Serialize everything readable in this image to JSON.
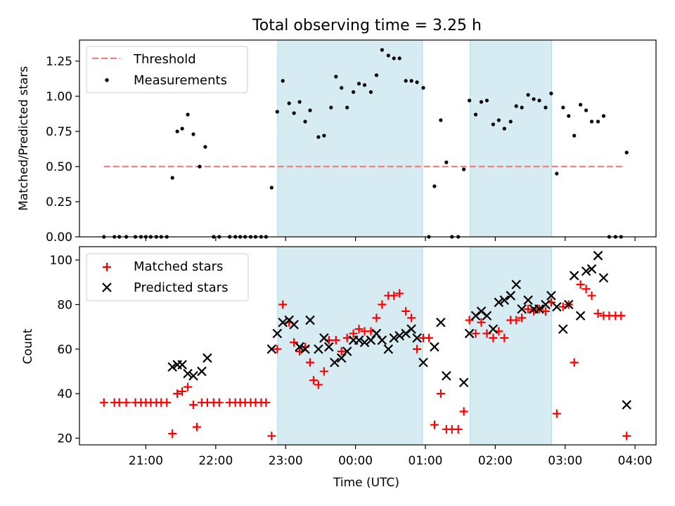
{
  "title": "Total observing time = 3.25 h",
  "chart_data": [
    {
      "type": "scatter",
      "panel": "top",
      "ylabel": "Matched/Predicted stars",
      "ylim": [
        0,
        1.4
      ],
      "yticks": [
        "0.00",
        "0.25",
        "0.50",
        "0.75",
        "1.00",
        "1.25"
      ],
      "xlim_hours": [
        20.05,
        28.3
      ],
      "shaded_intervals_hours": [
        [
          22.885,
          24.96
        ],
        [
          25.64,
          26.805
        ]
      ],
      "threshold": {
        "name": "Threshold",
        "value": 0.5,
        "x_start_hours": 20.4,
        "x_end_hours": 27.85,
        "color": "#f08080",
        "style": "dashed"
      },
      "legend": {
        "location": "upper left",
        "entries": [
          "Threshold",
          "Measurements"
        ]
      },
      "series": [
        {
          "name": "Measurements",
          "marker": "dot",
          "color": "#000000",
          "x_hours": [
            20.4,
            20.55,
            20.62,
            20.72,
            20.85,
            20.93,
            21.0,
            21.07,
            21.15,
            21.22,
            21.3,
            21.38,
            21.45,
            21.52,
            21.6,
            21.68,
            21.77,
            21.85,
            21.97,
            22.05,
            22.2,
            22.28,
            22.35,
            22.42,
            22.5,
            22.57,
            22.65,
            22.72,
            22.8,
            22.88,
            22.96,
            23.05,
            23.12,
            23.2,
            23.28,
            23.35,
            23.47,
            23.55,
            23.65,
            23.72,
            23.8,
            23.88,
            23.97,
            24.05,
            24.13,
            24.22,
            24.3,
            24.38,
            24.47,
            24.55,
            24.63,
            24.72,
            24.8,
            24.88,
            24.97,
            25.05,
            25.13,
            25.22,
            25.3,
            25.38,
            25.47,
            25.55,
            25.63,
            25.72,
            25.8,
            25.88,
            25.97,
            26.05,
            26.13,
            26.22,
            26.3,
            26.38,
            26.47,
            26.55,
            26.63,
            26.72,
            26.8,
            26.88,
            26.97,
            27.05,
            27.13,
            27.22,
            27.3,
            27.38,
            27.47,
            27.55,
            27.63,
            27.72,
            27.8,
            27.88
          ],
          "y": [
            0.0,
            0.0,
            0.0,
            0.0,
            0.0,
            0.0,
            0.0,
            0.0,
            0.0,
            0.0,
            0.0,
            0.42,
            0.75,
            0.77,
            0.87,
            0.73,
            0.5,
            0.64,
            0.0,
            0.0,
            0.0,
            0.0,
            0.0,
            0.0,
            0.0,
            0.0,
            0.0,
            0.0,
            0.35,
            0.89,
            1.11,
            0.95,
            0.88,
            0.96,
            0.82,
            0.9,
            0.71,
            0.72,
            0.92,
            1.14,
            1.06,
            0.92,
            1.03,
            1.09,
            1.08,
            1.03,
            1.15,
            1.33,
            1.29,
            1.27,
            1.27,
            1.11,
            1.11,
            1.1,
            1.06,
            0.0,
            0.36,
            0.83,
            0.53,
            0.0,
            0.0,
            0.48,
            0.97,
            0.87,
            0.96,
            0.97,
            0.8,
            0.83,
            0.77,
            0.82,
            0.93,
            0.92,
            1.01,
            0.98,
            0.97,
            0.92,
            1.02,
            0.45,
            0.92,
            0.86,
            0.72,
            0.94,
            0.9,
            0.82,
            0.82,
            0.86,
            0.0,
            0.0,
            0.0,
            0.6
          ]
        }
      ]
    },
    {
      "type": "scatter",
      "panel": "bottom",
      "xlabel": "Time (UTC)",
      "ylabel": "Count",
      "ylim": [
        17,
        106
      ],
      "yticks": [
        "20",
        "40",
        "60",
        "80",
        "100"
      ],
      "xtick_hours": [
        21,
        22,
        23,
        24,
        25,
        26,
        27,
        28
      ],
      "xtick_labels": [
        "21:00",
        "22:00",
        "23:00",
        "00:00",
        "01:00",
        "02:00",
        "03:00",
        "04:00"
      ],
      "xlim_hours": [
        20.05,
        28.3
      ],
      "shaded_intervals_hours": [
        [
          22.885,
          24.96
        ],
        [
          25.64,
          26.805
        ]
      ],
      "legend": {
        "location": "upper left",
        "entries": [
          "Matched stars",
          "Predicted stars"
        ]
      },
      "series": [
        {
          "name": "Matched stars",
          "marker": "plus",
          "color": "#ff0000",
          "x_hours": [
            20.4,
            20.55,
            20.62,
            20.72,
            20.85,
            20.93,
            21.0,
            21.07,
            21.15,
            21.22,
            21.3,
            21.38,
            21.45,
            21.52,
            21.6,
            21.68,
            21.73,
            21.8,
            21.88,
            21.97,
            22.05,
            22.2,
            22.28,
            22.35,
            22.42,
            22.5,
            22.57,
            22.65,
            22.72,
            22.8,
            22.88,
            22.96,
            23.05,
            23.12,
            23.2,
            23.28,
            23.35,
            23.4,
            23.47,
            23.55,
            23.62,
            23.72,
            23.8,
            23.88,
            23.97,
            24.05,
            24.13,
            24.22,
            24.3,
            24.38,
            24.47,
            24.55,
            24.63,
            24.72,
            24.8,
            24.88,
            24.97,
            25.05,
            25.13,
            25.22,
            25.3,
            25.38,
            25.47,
            25.55,
            25.63,
            25.72,
            25.8,
            25.88,
            25.97,
            26.05,
            26.13,
            26.22,
            26.3,
            26.38,
            26.47,
            26.55,
            26.63,
            26.72,
            26.8,
            26.88,
            26.97,
            27.05,
            27.13,
            27.22,
            27.3,
            27.38,
            27.47,
            27.55,
            27.63,
            27.72,
            27.8,
            27.88
          ],
          "y": [
            36,
            36,
            36,
            36,
            36,
            36,
            36,
            36,
            36,
            36,
            36,
            22,
            40,
            41,
            43,
            35,
            25,
            36,
            36,
            36,
            36,
            36,
            36,
            36,
            36,
            36,
            36,
            36,
            36,
            21,
            60,
            80,
            72,
            63,
            59,
            61,
            54,
            46,
            44,
            50,
            64,
            64,
            59,
            65,
            67,
            69,
            68,
            68,
            74,
            80,
            84,
            84,
            85,
            77,
            74,
            60,
            65,
            65,
            26,
            40,
            24,
            24,
            24,
            32,
            73,
            67,
            72,
            67,
            65,
            68,
            65,
            73,
            73,
            74,
            78,
            77,
            78,
            77,
            81,
            31,
            79,
            80,
            54,
            89,
            87,
            84,
            76,
            75,
            75,
            75,
            75,
            21
          ]
        },
        {
          "name": "Predicted stars",
          "marker": "x",
          "color": "#000000",
          "x_hours": [
            21.38,
            21.45,
            21.52,
            21.6,
            21.68,
            21.8,
            21.88,
            22.8,
            22.88,
            22.96,
            23.05,
            23.12,
            23.2,
            23.28,
            23.35,
            23.47,
            23.55,
            23.62,
            23.7,
            23.8,
            23.88,
            23.97,
            24.05,
            24.13,
            24.22,
            24.3,
            24.38,
            24.47,
            24.55,
            24.63,
            24.72,
            24.8,
            24.88,
            24.97,
            25.13,
            25.22,
            25.3,
            25.55,
            25.63,
            25.72,
            25.8,
            25.88,
            25.97,
            26.05,
            26.13,
            26.22,
            26.3,
            26.38,
            26.47,
            26.55,
            26.63,
            26.72,
            26.8,
            26.88,
            26.97,
            27.05,
            27.13,
            27.22,
            27.3,
            27.38,
            27.47,
            27.55,
            27.88
          ],
          "y": [
            52,
            53,
            53,
            49,
            48,
            50,
            56,
            60,
            67,
            72,
            73,
            71,
            61,
            60,
            73,
            60,
            65,
            61,
            54,
            56,
            59,
            64,
            64,
            63,
            64,
            67,
            64,
            60,
            65,
            66,
            67,
            69,
            65,
            54,
            61,
            72,
            48,
            45,
            67,
            75,
            77,
            75,
            69,
            81,
            82,
            84,
            89,
            78,
            82,
            78,
            78,
            80,
            84,
            79,
            69,
            80,
            93,
            75,
            95,
            96,
            102,
            92,
            35
          ]
        }
      ]
    }
  ]
}
